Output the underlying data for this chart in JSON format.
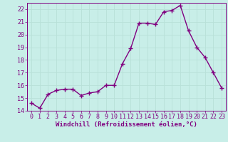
{
  "x": [
    0,
    1,
    2,
    3,
    4,
    5,
    6,
    7,
    8,
    9,
    10,
    11,
    12,
    13,
    14,
    15,
    16,
    17,
    18,
    19,
    20,
    21,
    22,
    23
  ],
  "y": [
    14.6,
    14.2,
    15.3,
    15.6,
    15.7,
    15.7,
    15.2,
    15.4,
    15.5,
    16.0,
    16.0,
    17.7,
    18.9,
    20.9,
    20.9,
    20.8,
    21.8,
    21.9,
    22.3,
    20.3,
    19.0,
    18.2,
    17.0,
    15.8
  ],
  "line_color": "#800080",
  "marker": "+",
  "marker_size": 4,
  "marker_lw": 1.0,
  "background_color": "#b2ebe0",
  "grid_color": "#d0f0e8",
  "xlabel": "Windchill (Refroidissement éolien,°C)",
  "ylim": [
    14,
    22.5
  ],
  "xlim": [
    -0.5,
    23.5
  ],
  "yticks": [
    14,
    15,
    16,
    17,
    18,
    19,
    20,
    21,
    22
  ],
  "ytick_labels": [
    "14",
    "15",
    "16",
    "17",
    "18",
    "19",
    "20",
    "21",
    "22"
  ],
  "xticks": [
    0,
    1,
    2,
    3,
    4,
    5,
    6,
    7,
    8,
    9,
    10,
    11,
    12,
    13,
    14,
    15,
    16,
    17,
    18,
    19,
    20,
    21,
    22,
    23
  ],
  "tick_color": "#800080",
  "label_color": "#800080",
  "xlabel_fontsize": 6.5,
  "tick_fontsize": 6.0,
  "line_width": 1.0
}
